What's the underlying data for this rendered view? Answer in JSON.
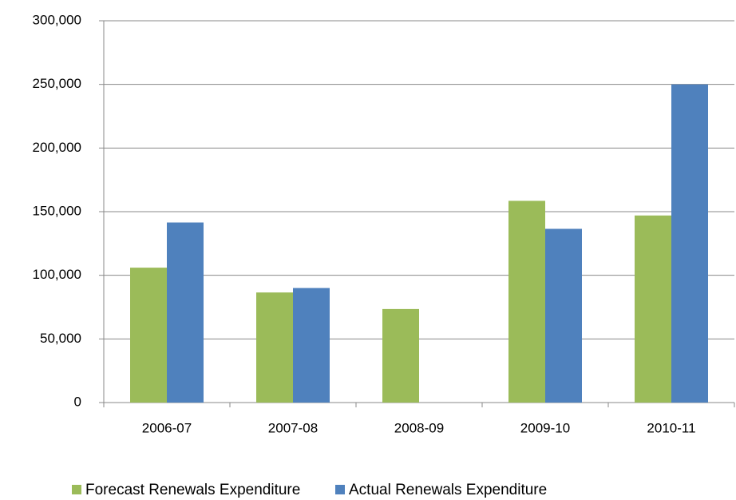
{
  "chart_data": {
    "type": "bar",
    "categories": [
      "2006-07",
      "2007-08",
      "2008-09",
      "2009-10",
      "2010-11"
    ],
    "series": [
      {
        "name": "Forecast Renewals Expenditure",
        "color": "#9bbb59",
        "values": [
          106000,
          86500,
          73500,
          158500,
          147000
        ]
      },
      {
        "name": "Actual Renewals Expenditure",
        "color": "#4f81bd",
        "values": [
          141500,
          90000,
          null,
          136500,
          250000
        ]
      }
    ],
    "ylim": [
      0,
      300000
    ],
    "yticks": [
      0,
      {
        "value": 50000,
        "label": "50,000"
      },
      {
        "value": 100000,
        "label": "100,000"
      },
      {
        "value": 150000,
        "label": "150,000"
      },
      {
        "value": 200000,
        "label": "200,000"
      },
      {
        "value": 250000,
        "label": "250,000"
      },
      {
        "value": 300000,
        "label": "300,000"
      }
    ],
    "grid": true,
    "legend": "bottom"
  }
}
